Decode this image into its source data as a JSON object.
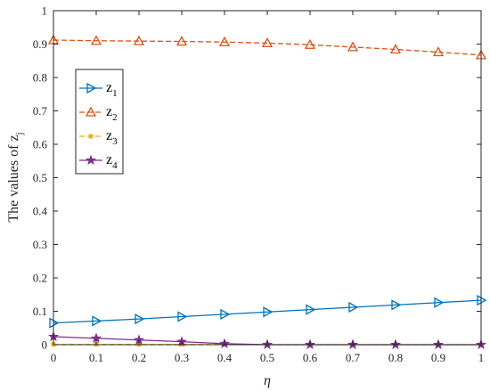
{
  "chart_data": {
    "type": "line",
    "xlabel": "η",
    "ylabel": "The values of z",
    "ylabel_subscript": "j",
    "xlim": [
      0,
      1
    ],
    "ylim": [
      0,
      1
    ],
    "x_ticks": [
      "0",
      "0.1",
      "0.2",
      "0.3",
      "0.4",
      "0.5",
      "0.6",
      "0.7",
      "0.8",
      "0.9",
      "1"
    ],
    "y_ticks": [
      "0",
      "0.1",
      "0.2",
      "0.3",
      "0.4",
      "0.5",
      "0.6",
      "0.7",
      "0.8",
      "0.9",
      "1"
    ],
    "grid": false,
    "legend_position": "upper-left",
    "x": [
      0,
      0.1,
      0.2,
      0.3,
      0.4,
      0.5,
      0.6,
      0.7,
      0.8,
      0.9,
      1
    ],
    "series": [
      {
        "name": "z1",
        "base": "z",
        "sub": "1",
        "color": "#0072BD",
        "linestyle": "solid",
        "marker": "triangle-right",
        "values": [
          0.065,
          0.071,
          0.077,
          0.084,
          0.091,
          0.098,
          0.105,
          0.112,
          0.119,
          0.126,
          0.133
        ]
      },
      {
        "name": "z2",
        "base": "z",
        "sub": "2",
        "color": "#D95319",
        "linestyle": "dashed",
        "marker": "triangle-up",
        "values": [
          0.912,
          0.91,
          0.909,
          0.908,
          0.906,
          0.903,
          0.898,
          0.891,
          0.884,
          0.876,
          0.867
        ]
      },
      {
        "name": "z3",
        "base": "z",
        "sub": "3",
        "color": "#EDB120",
        "linestyle": "dashed",
        "marker": "square",
        "values": [
          0.001,
          0.001,
          0.001,
          0.001,
          0.001,
          0.0,
          0.0,
          0.0,
          0.0,
          0.0,
          0.0
        ]
      },
      {
        "name": "z4",
        "base": "z",
        "sub": "4",
        "color": "#7E2F8E",
        "linestyle": "solid",
        "marker": "star",
        "values": [
          0.024,
          0.019,
          0.014,
          0.009,
          0.003,
          0.0,
          0.0,
          0.0,
          0.0,
          0.0,
          0.0
        ]
      }
    ]
  }
}
